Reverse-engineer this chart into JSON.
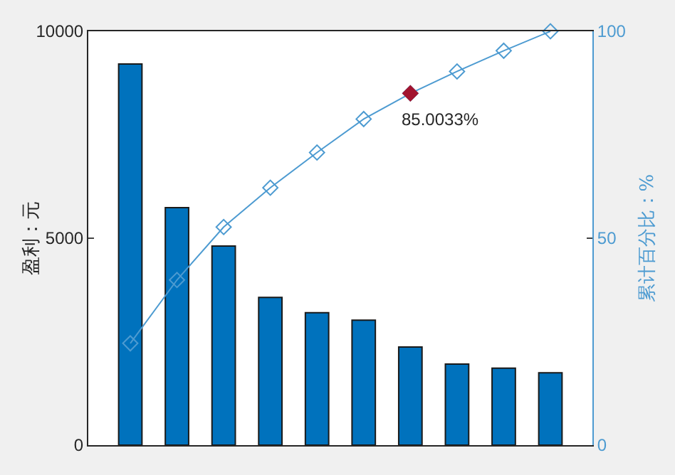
{
  "chart_data": {
    "type": "bar",
    "categories": [
      null,
      null,
      null,
      null,
      null,
      null,
      null,
      null,
      null,
      null
    ],
    "ylabel": "盈利：元",
    "y2label": "累计百分比：%",
    "ylim": [
      0,
      10000
    ],
    "yticks": [
      0,
      5000,
      10000
    ],
    "y2lim": [
      0,
      100
    ],
    "y2ticks": [
      0,
      50,
      100
    ],
    "grid": false,
    "series": [
      {
        "color": "#0072bd",
        "values": [
          9210,
          5740,
          4810,
          3570,
          3200,
          3020,
          2370,
          1960,
          1860,
          1750
        ]
      },
      {
        "type": "line",
        "axis": "y2",
        "color": "#4d9bd1",
        "marker": "diamond",
        "values": [
          24.6,
          39.9,
          52.7,
          62.2,
          70.7,
          78.8,
          85.0,
          90.3,
          95.3,
          100
        ]
      },
      {
        "type": "scatter",
        "axis": "y2",
        "color": "#a2142f",
        "marker": "diamond",
        "values": [
          null,
          null,
          null,
          null,
          null,
          null,
          85.0,
          null,
          null,
          null
        ]
      }
    ],
    "annotations": [
      "85.0033%"
    ]
  }
}
